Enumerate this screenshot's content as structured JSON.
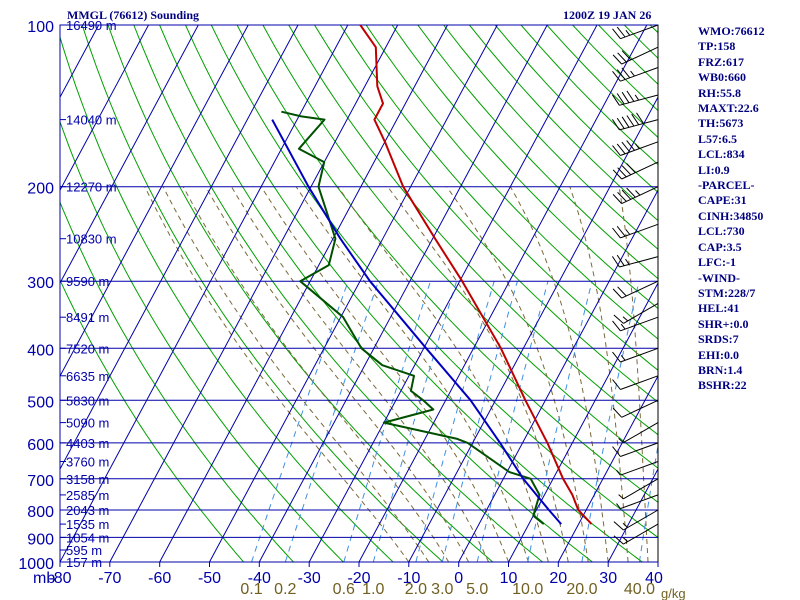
{
  "header": {
    "title": "MMGL (76612) Sounding",
    "time": "1200Z 19 JAN 26"
  },
  "info": [
    "WMO:76612",
    "TP:158",
    "FRZ:617",
    "WB0:660",
    "RH:55.8",
    "MAXT:22.6",
    "TH:5673",
    "L57:6.5",
    "LCL:834",
    "LI:0.9",
    "-PARCEL-",
    "CAPE:31",
    "CINH:34850",
    "LCL:730",
    "CAP:3.5",
    "LFC:-1",
    "-WIND-",
    "STM:228/7",
    "HEL:41",
    "SHR+:0.0",
    "SRDS:7",
    "EHI:0.0",
    "BRN:1.4",
    "BSHR:22"
  ],
  "colors": {
    "frame": "#0000aa",
    "isotherm": "#0000aa",
    "dry_adiabat": "#00a000",
    "moist_adiabat": "#7a6a3a",
    "mixing_ratio": "#4090e0",
    "temperature": "#c00000",
    "dewpoint": "#005000",
    "parcel": "#0000c0",
    "tick_mixing": "#706020"
  },
  "chart_data": {
    "type": "skew-t",
    "title": "MMGL (76612) Sounding",
    "pressure_unit": "mb",
    "mixing_ratio_unit": "g/kg",
    "pressure_levels": [
      100,
      200,
      300,
      400,
      500,
      600,
      700,
      800,
      900,
      1000
    ],
    "temperature_ticks": [
      -80,
      -70,
      -60,
      -50,
      -40,
      -30,
      -20,
      -10,
      0,
      10,
      20,
      30,
      40
    ],
    "isotherm_range_c": [
      -150,
      60
    ],
    "isotherm_step_c": 10,
    "mixing_ratio_lines": [
      0.1,
      0.2,
      0.6,
      1.0,
      2.0,
      3.0,
      5.0,
      10.0,
      20.0,
      40.0
    ],
    "mixing_ratio_labels": [
      "0.1",
      "0.2",
      "0.6",
      "1.0",
      "2.0",
      "3.0",
      "5.0",
      "10.0",
      "20.0",
      "40.0"
    ],
    "height_labels": [
      {
        "p": 100,
        "label": "16490 m"
      },
      {
        "p": 150,
        "label": "14040 m"
      },
      {
        "p": 200,
        "label": "12270 m"
      },
      {
        "p": 250,
        "label": "10830 m"
      },
      {
        "p": 300,
        "label": "9590 m"
      },
      {
        "p": 350,
        "label": "8491 m"
      },
      {
        "p": 400,
        "label": "7520 m"
      },
      {
        "p": 450,
        "label": "6635 m"
      },
      {
        "p": 500,
        "label": "5830 m"
      },
      {
        "p": 550,
        "label": "5090 m"
      },
      {
        "p": 600,
        "label": "4403 m"
      },
      {
        "p": 650,
        "label": "3760 m"
      },
      {
        "p": 700,
        "label": "3158 m"
      },
      {
        "p": 750,
        "label": "2585 m"
      },
      {
        "p": 800,
        "label": "2043 m"
      },
      {
        "p": 850,
        "label": "1535 m"
      },
      {
        "p": 900,
        "label": "1054 m"
      },
      {
        "p": 950,
        "label": "595 m"
      },
      {
        "p": 1000,
        "label": "157 m"
      }
    ],
    "series": [
      {
        "name": "temperature",
        "points": [
          {
            "p": 850,
            "t": 22.6
          },
          {
            "p": 800,
            "t": 18.4
          },
          {
            "p": 750,
            "t": 15.6
          },
          {
            "p": 700,
            "t": 12.0
          },
          {
            "p": 600,
            "t": 5.0
          },
          {
            "p": 500,
            "t": -4.0
          },
          {
            "p": 400,
            "t": -14.5
          },
          {
            "p": 300,
            "t": -29.5
          },
          {
            "p": 250,
            "t": -39.5
          },
          {
            "p": 200,
            "t": -51.5
          },
          {
            "p": 165,
            "t": -60.0
          },
          {
            "p": 150,
            "t": -64.5
          },
          {
            "p": 140,
            "t": -64.5
          },
          {
            "p": 130,
            "t": -67.5
          },
          {
            "p": 110,
            "t": -72.0
          },
          {
            "p": 100,
            "t": -77.5
          }
        ]
      },
      {
        "name": "dewpoint",
        "points": [
          {
            "p": 850,
            "t": 13.0
          },
          {
            "p": 820,
            "t": 10.0
          },
          {
            "p": 750,
            "t": 9.0
          },
          {
            "p": 700,
            "t": 5.5
          },
          {
            "p": 680,
            "t": 0.5
          },
          {
            "p": 600,
            "t": -11.0
          },
          {
            "p": 590,
            "t": -13.5
          },
          {
            "p": 550,
            "t": -30.0
          },
          {
            "p": 520,
            "t": -21.5
          },
          {
            "p": 500,
            "t": -24.5
          },
          {
            "p": 480,
            "t": -28.0
          },
          {
            "p": 450,
            "t": -29.0
          },
          {
            "p": 430,
            "t": -36.5
          },
          {
            "p": 400,
            "t": -42.5
          },
          {
            "p": 350,
            "t": -49.5
          },
          {
            "p": 300,
            "t": -62.0
          },
          {
            "p": 280,
            "t": -58.0
          },
          {
            "p": 250,
            "t": -59.5
          },
          {
            "p": 200,
            "t": -68.5
          },
          {
            "p": 180,
            "t": -70.0
          },
          {
            "p": 170,
            "t": -76.5
          },
          {
            "p": 150,
            "t": -74.5
          },
          {
            "p": 148,
            "t": -79.5
          },
          {
            "p": 145,
            "t": -84.0
          }
        ]
      },
      {
        "name": "parcel",
        "points": [
          {
            "p": 850,
            "t": 16.5
          },
          {
            "p": 800,
            "t": 12.5
          },
          {
            "p": 700,
            "t": 4.0
          },
          {
            "p": 600,
            "t": -4.5
          },
          {
            "p": 500,
            "t": -15.0
          },
          {
            "p": 400,
            "t": -29.5
          },
          {
            "p": 300,
            "t": -48.0
          },
          {
            "p": 250,
            "t": -58.5
          },
          {
            "p": 200,
            "t": -70.5
          },
          {
            "p": 150,
            "t": -85.0
          }
        ]
      }
    ],
    "wind_barbs": [
      {
        "p": 100,
        "dir": 250,
        "kt": 25
      },
      {
        "p": 110,
        "dir": 245,
        "kt": 30
      },
      {
        "p": 120,
        "dir": 250,
        "kt": 35
      },
      {
        "p": 135,
        "dir": 255,
        "kt": 45
      },
      {
        "p": 150,
        "dir": 255,
        "kt": 60
      },
      {
        "p": 165,
        "dir": 250,
        "kt": 45
      },
      {
        "p": 180,
        "dir": 245,
        "kt": 40
      },
      {
        "p": 200,
        "dir": 245,
        "kt": 45
      },
      {
        "p": 235,
        "dir": 250,
        "kt": 25
      },
      {
        "p": 270,
        "dir": 255,
        "kt": 25
      },
      {
        "p": 300,
        "dir": 245,
        "kt": 20
      },
      {
        "p": 330,
        "dir": 240,
        "kt": 15
      },
      {
        "p": 350,
        "dir": 250,
        "kt": 15
      },
      {
        "p": 400,
        "dir": 250,
        "kt": 15
      },
      {
        "p": 450,
        "dir": 250,
        "kt": 10
      },
      {
        "p": 500,
        "dir": 245,
        "kt": 10
      },
      {
        "p": 550,
        "dir": 240,
        "kt": 5
      },
      {
        "p": 600,
        "dir": 250,
        "kt": 10
      },
      {
        "p": 650,
        "dir": 250,
        "kt": 5
      },
      {
        "p": 700,
        "dir": 240,
        "kt": 5
      },
      {
        "p": 750,
        "dir": 250,
        "kt": 5
      },
      {
        "p": 800,
        "dir": 240,
        "kt": 15
      },
      {
        "p": 850,
        "dir": 240,
        "kt": 15
      }
    ]
  }
}
